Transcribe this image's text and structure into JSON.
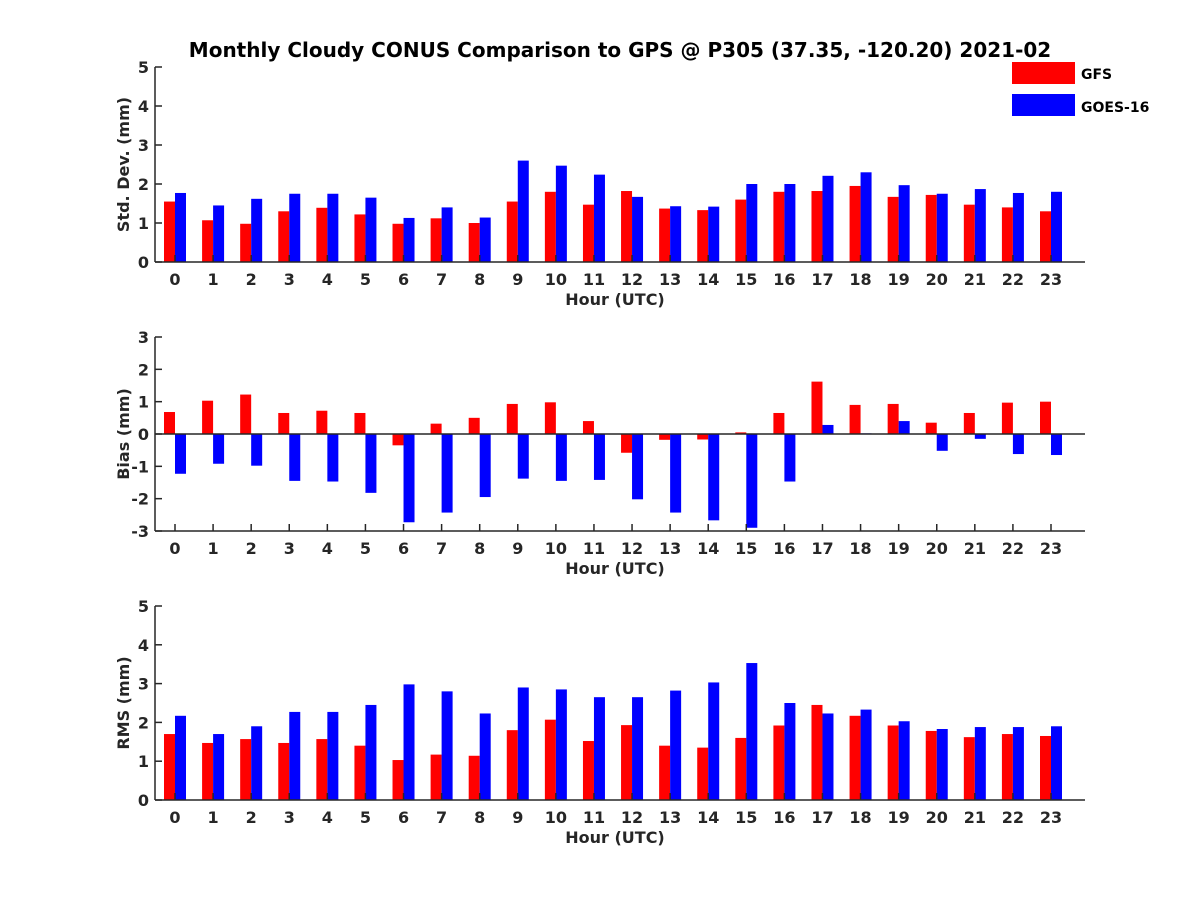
{
  "figure": {
    "title": "Monthly Cloudy CONUS Comparison to GPS @ P305 (37.35, -120.20) 2021-02"
  },
  "legend": {
    "placement": "top-right",
    "items": [
      {
        "name": "GFS",
        "color": "#ff0000"
      },
      {
        "name": "GOES-16",
        "color": "#0000ff"
      }
    ]
  },
  "chart_data": [
    {
      "type": "bar",
      "xlabel": "Hour (UTC)",
      "ylabel": "Std. Dev. (mm)",
      "ylim": [
        0,
        5
      ],
      "yticks": [
        0,
        1,
        2,
        3,
        4,
        5
      ],
      "categories": [
        "0",
        "1",
        "2",
        "3",
        "4",
        "5",
        "6",
        "7",
        "8",
        "9",
        "10",
        "11",
        "12",
        "13",
        "14",
        "15",
        "16",
        "17",
        "18",
        "19",
        "20",
        "21",
        "22",
        "23"
      ],
      "series": [
        {
          "name": "GFS",
          "color": "#ff0000",
          "values": [
            1.55,
            1.07,
            0.98,
            1.3,
            1.39,
            1.22,
            0.98,
            1.12,
            1.0,
            1.55,
            1.8,
            1.47,
            1.82,
            1.37,
            1.33,
            1.6,
            1.8,
            1.82,
            1.95,
            1.67,
            1.72,
            1.47,
            1.4,
            1.3
          ]
        },
        {
          "name": "GOES-16",
          "color": "#0000ff",
          "values": [
            1.77,
            1.45,
            1.62,
            1.75,
            1.75,
            1.65,
            1.13,
            1.4,
            1.14,
            2.6,
            2.47,
            2.24,
            1.67,
            1.43,
            1.42,
            2.0,
            2.0,
            2.21,
            2.3,
            1.97,
            1.75,
            1.87,
            1.77,
            1.8
          ]
        }
      ]
    },
    {
      "type": "bar",
      "xlabel": "Hour (UTC)",
      "ylabel": "Bias (mm)",
      "ylim": [
        -3,
        3
      ],
      "yticks": [
        -3,
        -2,
        -1,
        0,
        1,
        2,
        3
      ],
      "categories": [
        "0",
        "1",
        "2",
        "3",
        "4",
        "5",
        "6",
        "7",
        "8",
        "9",
        "10",
        "11",
        "12",
        "13",
        "14",
        "15",
        "16",
        "17",
        "18",
        "19",
        "20",
        "21",
        "22",
        "23"
      ],
      "series": [
        {
          "name": "GFS",
          "color": "#ff0000",
          "values": [
            0.68,
            1.03,
            1.22,
            0.65,
            0.72,
            0.65,
            -0.35,
            0.32,
            0.5,
            0.93,
            0.98,
            0.4,
            -0.58,
            -0.18,
            -0.17,
            0.05,
            0.65,
            1.62,
            0.9,
            0.93,
            0.35,
            0.65,
            0.97,
            1.0
          ]
        },
        {
          "name": "GOES-16",
          "color": "#0000ff",
          "values": [
            -1.23,
            -0.92,
            -0.98,
            -1.45,
            -1.47,
            -1.82,
            -2.73,
            -2.43,
            -1.95,
            -1.38,
            -1.45,
            -1.42,
            -2.02,
            -2.43,
            -2.67,
            -2.9,
            -1.47,
            0.28,
            0.02,
            0.4,
            -0.52,
            -0.15,
            -0.62,
            -0.65
          ]
        }
      ]
    },
    {
      "type": "bar",
      "xlabel": "Hour (UTC)",
      "ylabel": "RMS (mm)",
      "ylim": [
        0,
        5
      ],
      "yticks": [
        0,
        1,
        2,
        3,
        4,
        5
      ],
      "categories": [
        "0",
        "1",
        "2",
        "3",
        "4",
        "5",
        "6",
        "7",
        "8",
        "9",
        "10",
        "11",
        "12",
        "13",
        "14",
        "15",
        "16",
        "17",
        "18",
        "19",
        "20",
        "21",
        "22",
        "23"
      ],
      "series": [
        {
          "name": "GFS",
          "color": "#ff0000",
          "values": [
            1.7,
            1.47,
            1.57,
            1.47,
            1.57,
            1.4,
            1.03,
            1.17,
            1.14,
            1.8,
            2.07,
            1.52,
            1.93,
            1.4,
            1.35,
            1.6,
            1.92,
            2.45,
            2.17,
            1.92,
            1.78,
            1.62,
            1.7,
            1.65
          ]
        },
        {
          "name": "GOES-16",
          "color": "#0000ff",
          "values": [
            2.17,
            1.7,
            1.9,
            2.27,
            2.27,
            2.45,
            2.98,
            2.8,
            2.23,
            2.9,
            2.85,
            2.65,
            2.65,
            2.82,
            3.03,
            3.53,
            2.5,
            2.23,
            2.33,
            2.03,
            1.83,
            1.88,
            1.88,
            1.9
          ]
        }
      ]
    }
  ]
}
